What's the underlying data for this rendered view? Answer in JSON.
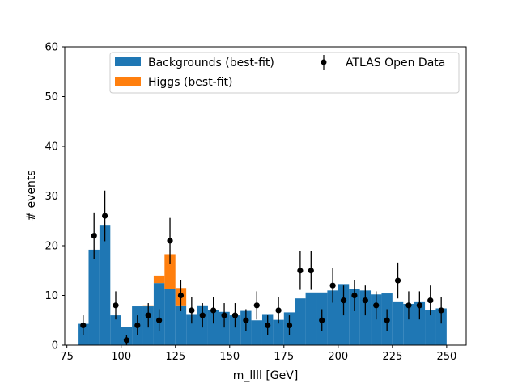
{
  "chart_data": {
    "type": "bar",
    "xlabel": "m_llll [GeV]",
    "ylabel": "# events",
    "xlim": [
      74,
      259
    ],
    "ylim": [
      0,
      60
    ],
    "xticks": [
      75,
      100,
      125,
      150,
      175,
      200,
      225,
      250
    ],
    "yticks": [
      0,
      10,
      20,
      30,
      40,
      50,
      60
    ],
    "grid": false,
    "legend_placement": "top-center",
    "bin_edges": [
      80,
      85,
      90,
      95,
      100,
      105,
      110,
      115,
      120,
      125,
      130,
      135,
      140,
      145,
      150,
      155,
      160,
      165,
      170,
      175,
      180,
      185,
      190,
      195,
      200,
      205,
      210,
      215,
      220,
      225,
      230,
      235,
      240,
      245,
      250
    ],
    "series": [
      {
        "name": "Backgrounds (best-fit)",
        "kind": "stacked-histogram",
        "color": "#1f77b4",
        "values": [
          4.3,
          19.2,
          24.2,
          6.0,
          3.7,
          7.8,
          7.8,
          12.5,
          11.3,
          8.0,
          6.1,
          8.0,
          7.0,
          6.7,
          6.0,
          6.9,
          5.0,
          6.1,
          5.1,
          6.6,
          9.4,
          10.6,
          10.6,
          11.0,
          12.3,
          11.3,
          11.0,
          10.2,
          10.4,
          8.8,
          8.3,
          8.8,
          7.1,
          7.4
        ]
      },
      {
        "name": "Higgs (best-fit)",
        "kind": "stacked-histogram",
        "color": "#ff7f0e",
        "values": [
          0,
          0,
          0,
          0,
          0,
          0,
          0.2,
          1.5,
          7.0,
          3.5,
          0,
          0,
          0,
          0,
          0,
          0,
          0,
          0,
          0,
          0,
          0,
          0,
          0,
          0,
          0,
          0,
          0,
          0,
          0,
          0,
          0,
          0,
          0,
          0
        ]
      },
      {
        "name": "ATLAS Open Data",
        "kind": "points-with-errors",
        "color": "#000000",
        "x": [
          82.5,
          87.5,
          92.5,
          97.5,
          102.5,
          107.5,
          112.5,
          117.5,
          122.5,
          127.5,
          132.5,
          137.5,
          142.5,
          147.5,
          152.5,
          157.5,
          162.5,
          167.5,
          172.5,
          177.5,
          182.5,
          187.5,
          192.5,
          197.5,
          202.5,
          207.5,
          212.5,
          217.5,
          222.5,
          227.5,
          232.5,
          237.5,
          242.5,
          247.5
        ],
        "y": [
          4,
          22,
          26,
          8,
          1,
          4,
          6,
          5,
          21,
          10,
          7,
          6,
          7,
          6,
          6,
          5,
          8,
          4,
          7,
          4,
          15,
          15,
          5,
          12,
          9,
          10,
          9,
          8,
          5,
          13,
          8,
          8,
          9,
          7
        ]
      }
    ]
  }
}
